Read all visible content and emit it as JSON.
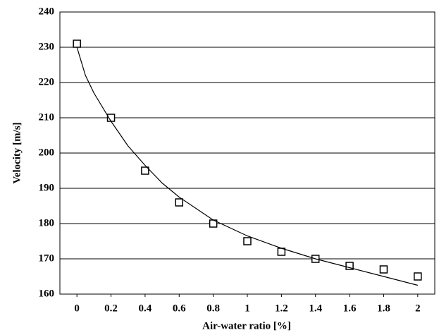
{
  "chart_data": {
    "type": "scatter",
    "xlabel": "Air-water ratio [%]",
    "ylabel": "Velocity [m/s]",
    "series": [
      {
        "x": [
          0,
          0.2,
          0.4,
          0.6,
          0.8,
          1,
          1.2,
          1.4,
          1.6,
          1.8,
          2
        ],
        "values": [
          231,
          210,
          195,
          186,
          180,
          175,
          172,
          170,
          168,
          167,
          165
        ],
        "marker": "square",
        "color": "#000000"
      },
      {
        "x": [
          0,
          0.05,
          0.1,
          0.2,
          0.3,
          0.4,
          0.5,
          0.6,
          0.8,
          1,
          1.2,
          1.4,
          1.6,
          1.8,
          2
        ],
        "values": [
          230,
          222,
          217,
          209,
          202,
          196.5,
          191.5,
          187.5,
          181,
          176.5,
          173,
          170,
          167.5,
          165,
          162.5
        ],
        "line": true,
        "color": "#000000"
      }
    ],
    "xlim": [
      -0.1,
      2.1
    ],
    "xticks": [
      0,
      0.2,
      0.4,
      0.6,
      0.8,
      1,
      1.2,
      1.4,
      1.6,
      1.8,
      2
    ],
    "ylim": [
      160,
      240
    ],
    "yticks": [
      160,
      170,
      180,
      190,
      200,
      210,
      220,
      230,
      240
    ],
    "grid": true
  }
}
